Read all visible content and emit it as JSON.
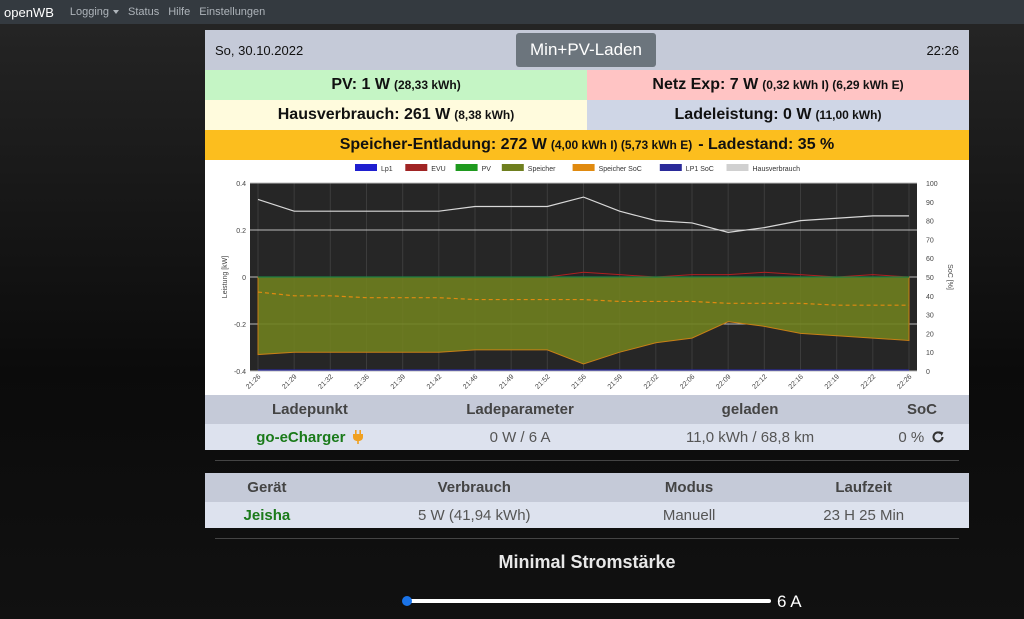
{
  "nav": {
    "brand": "openWB",
    "items": [
      "Logging",
      "Status",
      "Hilfe",
      "Einstellungen"
    ]
  },
  "header": {
    "date": "So, 30.10.2022",
    "mode": "Min+PV-Laden",
    "time": "22:26"
  },
  "summary": {
    "pv_main": "PV: 1 W",
    "pv_detail": "(28,33 kWh)",
    "netz_main": "Netz Exp: 7 W",
    "netz_detail": "(0,32 kWh I) (6,29 kWh E)",
    "haus_main": "Hausverbrauch: 261 W",
    "haus_detail": "(8,38 kWh)",
    "lade_main": "Ladeleistung: 0 W",
    "lade_detail": "(11,00 kWh)",
    "speicher_main": "Speicher-Entladung: 272 W",
    "speicher_detail": "(4,00 kWh I) (5,73 kWh E)",
    "speicher_soc": "- Ladestand: 35 %"
  },
  "chart_data": {
    "type": "line",
    "legend": [
      "Lp1",
      "EVU",
      "PV",
      "Speicher",
      "Speicher SoC",
      "LP1 SoC",
      "Hausverbrauch"
    ],
    "legend_colors": [
      "#1f1fd0",
      "#a02424",
      "#1f9a1f",
      "#6f7f1f",
      "#e08a10",
      "#2a2a9a",
      "#d0d0d0"
    ],
    "y_left_label": "Leistung [kW]",
    "y_right_label": "SoC [%]",
    "y_left_ticks": [
      "0.4",
      "0.2",
      "0",
      "-0.2",
      "-0.4"
    ],
    "y_right_ticks": [
      "100",
      "90",
      "80",
      "70",
      "60",
      "50",
      "40",
      "30",
      "20",
      "10",
      "0"
    ],
    "y_left_range": [
      -0.4,
      0.4
    ],
    "y_right_range": [
      0,
      100
    ],
    "x_ticks": [
      "21:26",
      "21:29",
      "21:32",
      "21:36",
      "21:39",
      "21:42",
      "21:46",
      "21:49",
      "21:52",
      "21:56",
      "21:59",
      "22:02",
      "22:06",
      "22:09",
      "22:12",
      "22:16",
      "22:19",
      "22:22",
      "22:26"
    ],
    "hausverbrauch_kw": [
      0.33,
      0.28,
      0.28,
      0.28,
      0.28,
      0.28,
      0.3,
      0.3,
      0.3,
      0.34,
      0.28,
      0.24,
      0.23,
      0.19,
      0.21,
      0.24,
      0.25,
      0.26,
      0.26
    ],
    "speicher_kw": [
      -0.33,
      -0.32,
      -0.32,
      -0.32,
      -0.32,
      -0.32,
      -0.31,
      -0.31,
      -0.31,
      -0.37,
      -0.32,
      -0.28,
      -0.26,
      -0.19,
      -0.21,
      -0.24,
      -0.25,
      -0.26,
      -0.27
    ],
    "speicher_soc_pct": [
      42,
      40,
      40,
      39,
      39,
      39,
      38,
      38,
      38,
      38,
      37,
      37,
      37,
      36,
      36,
      36,
      35,
      35,
      35
    ],
    "evu_kw": [
      0,
      0,
      0,
      0,
      0,
      0,
      0,
      0,
      0,
      0.02,
      0.01,
      0,
      0.01,
      0.01,
      0.02,
      0.01,
      0,
      0.01,
      0
    ],
    "lp1_kw": [
      0,
      0,
      0,
      0,
      0,
      0,
      0,
      0,
      0,
      0,
      0,
      0,
      0,
      0,
      0,
      0,
      0,
      0,
      0
    ],
    "pv_kw": [
      0,
      0,
      0,
      0,
      0,
      0,
      0,
      0,
      0,
      0,
      0,
      0,
      0,
      0,
      0,
      0,
      0,
      0,
      0
    ],
    "lp1_soc_pct": [
      0,
      0,
      0,
      0,
      0,
      0,
      0,
      0,
      0,
      0,
      0,
      0,
      0,
      0,
      0,
      0,
      0,
      0,
      0
    ],
    "grid": true,
    "legend_position": "top"
  },
  "ladepunkt_table": {
    "headers": [
      "Ladepunkt",
      "Ladeparameter",
      "geladen",
      "SoC"
    ],
    "row": {
      "name": "go-eCharger",
      "parameter": "0 W / 6 A",
      "geladen": "11,0 kWh / 68,8 km",
      "soc": "0 %"
    }
  },
  "geraet_table": {
    "headers": [
      "Gerät",
      "Verbrauch",
      "Modus",
      "Laufzeit"
    ],
    "row": {
      "name": "Jeisha",
      "verbrauch": "5 W (41,94 kWh)",
      "modus": "Manuell",
      "laufzeit": "23 H 25 Min"
    }
  },
  "minimal": {
    "title": "Minimal Stromstärke",
    "value": "6 A",
    "slider_fraction": 0.0
  }
}
